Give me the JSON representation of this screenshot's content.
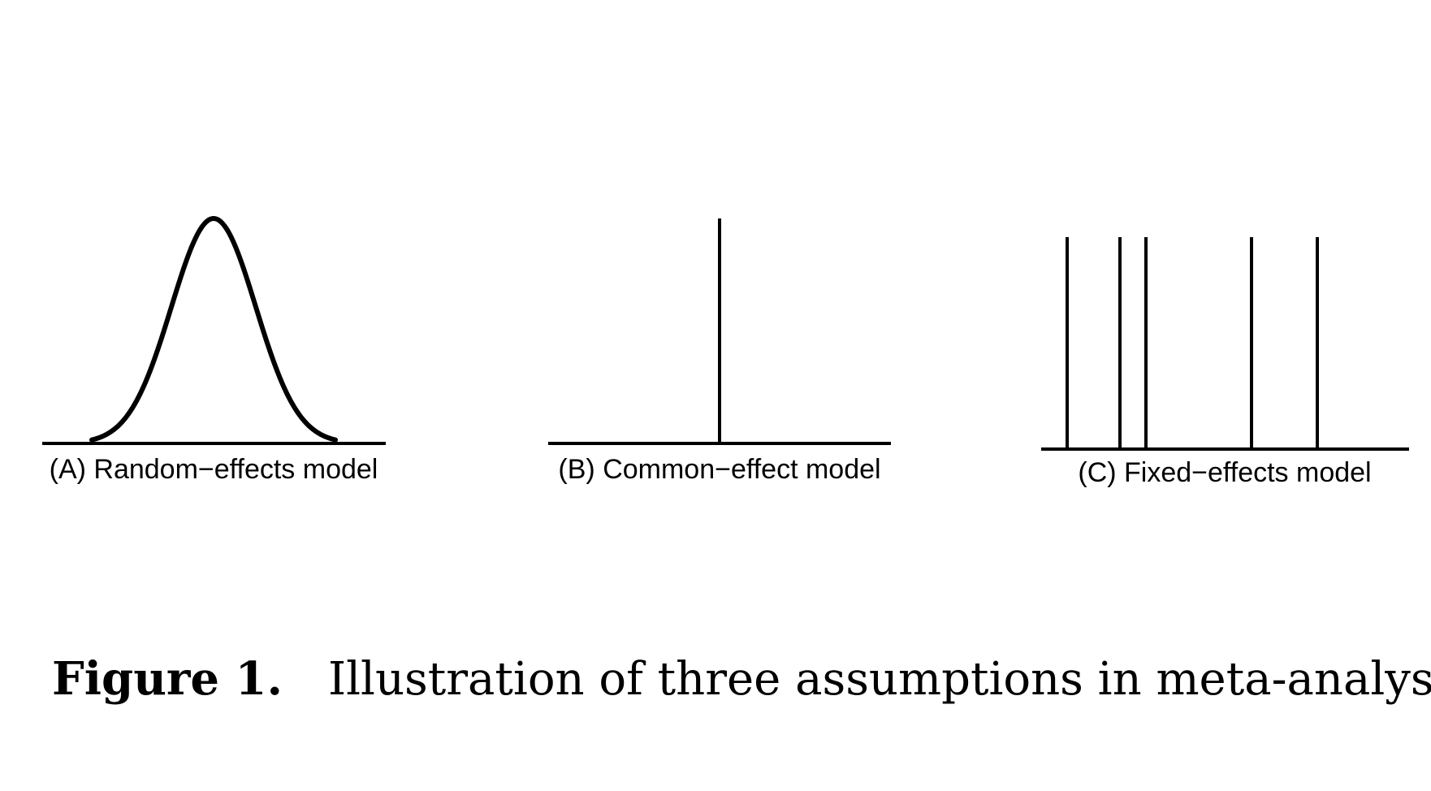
{
  "figure": {
    "panels": [
      {
        "label": "(A) Random−effects model",
        "kind": "normal-curve"
      },
      {
        "label": "(B) Common−effect model",
        "kind": "single-spike"
      },
      {
        "label": "(C) Fixed−effects model",
        "kind": "multiple-spikes"
      }
    ],
    "caption_label": "Figure 1.",
    "caption_text": "Illustration of three assumptions in meta-analysis"
  },
  "colors": {
    "ink": "#000000",
    "background": "#ffffff"
  }
}
